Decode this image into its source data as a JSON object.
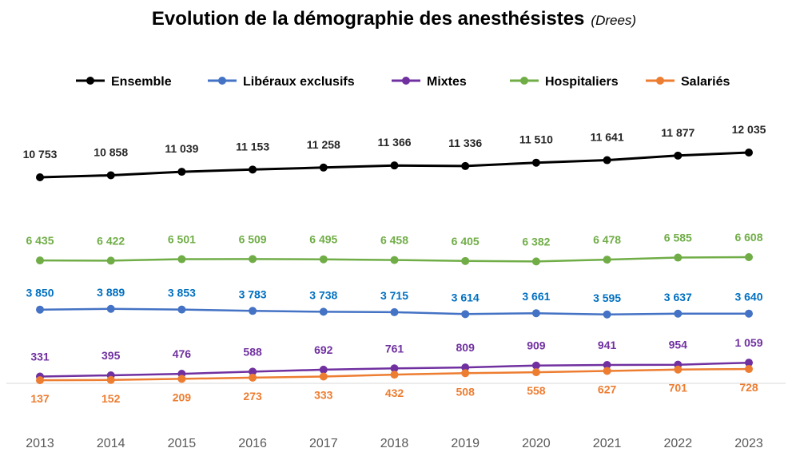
{
  "chart_data": {
    "type": "line",
    "title": "Evolution de la démographie des anesthésistes",
    "subtitle": "(Drees)",
    "xlabel": "",
    "ylabel": "",
    "legend_position": "top",
    "grid": false,
    "x": [
      "2013",
      "2014",
      "2015",
      "2016",
      "2017",
      "2018",
      "2019",
      "2020",
      "2021",
      "2022",
      "2023"
    ],
    "series": [
      {
        "name": "Ensemble",
        "color": "#000000",
        "label_color": "#262626",
        "values": [
          10753,
          10858,
          11039,
          11153,
          11258,
          11366,
          11336,
          11510,
          11641,
          11877,
          12035
        ],
        "labels": [
          "10 753",
          "10 858",
          "11 039",
          "11 153",
          "11 258",
          "11 366",
          "11 336",
          "11 510",
          "11 641",
          "11 877",
          "12 035"
        ]
      },
      {
        "name": "Libéraux exclusifs",
        "color": "#4472c4",
        "label_color": "#0070c0",
        "values": [
          3850,
          3889,
          3853,
          3783,
          3738,
          3715,
          3614,
          3661,
          3595,
          3637,
          3640
        ],
        "labels": [
          "3 850",
          "3 889",
          "3 853",
          "3 783",
          "3 738",
          "3 715",
          "3 614",
          "3 661",
          "3 595",
          "3 637",
          "3 640"
        ]
      },
      {
        "name": "Mixtes",
        "color": "#7030a0",
        "label_color": "#7030a0",
        "values": [
          331,
          395,
          476,
          588,
          692,
          761,
          809,
          909,
          941,
          954,
          1059
        ],
        "labels": [
          "331",
          "395",
          "476",
          "588",
          "692",
          "761",
          "809",
          "909",
          "941",
          "954",
          "1 059"
        ]
      },
      {
        "name": "Hospitaliers",
        "color": "#70ad47",
        "label_color": "#70ad47",
        "values": [
          6435,
          6422,
          6501,
          6509,
          6495,
          6458,
          6405,
          6382,
          6478,
          6585,
          6608
        ],
        "labels": [
          "6 435",
          "6 422",
          "6 501",
          "6 509",
          "6 495",
          "6 458",
          "6 405",
          "6 382",
          "6 478",
          "6 585",
          "6 608"
        ]
      },
      {
        "name": "Salariés",
        "color": "#ed7d31",
        "label_color": "#ed7d31",
        "values": [
          137,
          152,
          209,
          273,
          333,
          432,
          508,
          558,
          627,
          701,
          728
        ],
        "labels": [
          "137",
          "152",
          "209",
          "273",
          "333",
          "432",
          "508",
          "558",
          "627",
          "701",
          "728"
        ]
      }
    ]
  }
}
